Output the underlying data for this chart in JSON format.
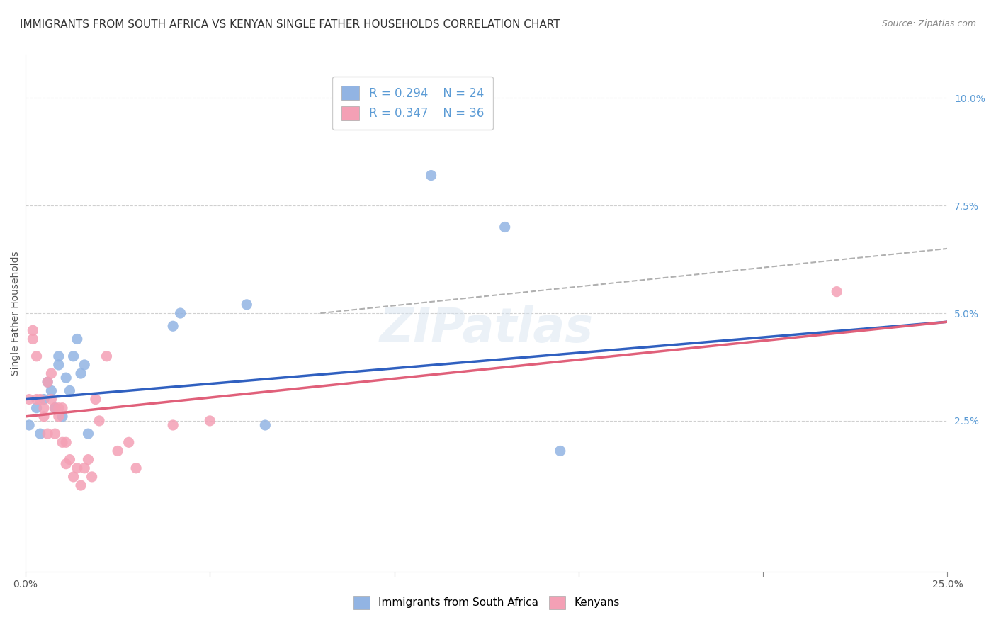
{
  "title": "IMMIGRANTS FROM SOUTH AFRICA VS KENYAN SINGLE FATHER HOUSEHOLDS CORRELATION CHART",
  "source": "Source: ZipAtlas.com",
  "xlabel_label": "",
  "ylabel_label": "Single Father Households",
  "xlim": [
    0.0,
    0.25
  ],
  "ylim": [
    -0.01,
    0.11
  ],
  "xticks": [
    0.0,
    0.05,
    0.1,
    0.15,
    0.2,
    0.25
  ],
  "xticklabels": [
    "0.0%",
    "",
    "",
    "",
    "",
    "25.0%"
  ],
  "yticks_right": [
    0.0,
    0.025,
    0.05,
    0.075,
    0.1
  ],
  "yticklabels_right": [
    "",
    "2.5%",
    "5.0%",
    "7.5%",
    "10.0%"
  ],
  "blue_R": "0.294",
  "blue_N": "24",
  "pink_R": "0.347",
  "pink_N": "36",
  "blue_color": "#92b4e3",
  "pink_color": "#f4a0b5",
  "blue_line_color": "#3060c0",
  "pink_line_color": "#e0607a",
  "dashed_line_color": "#b0b0b0",
  "watermark": "ZIPatlas",
  "blue_scatter_x": [
    0.001,
    0.003,
    0.004,
    0.005,
    0.006,
    0.007,
    0.008,
    0.009,
    0.009,
    0.01,
    0.011,
    0.012,
    0.013,
    0.014,
    0.015,
    0.016,
    0.017,
    0.04,
    0.042,
    0.06,
    0.065,
    0.11,
    0.13,
    0.145
  ],
  "blue_scatter_y": [
    0.024,
    0.028,
    0.022,
    0.03,
    0.034,
    0.032,
    0.028,
    0.04,
    0.038,
    0.026,
    0.035,
    0.032,
    0.04,
    0.044,
    0.036,
    0.038,
    0.022,
    0.047,
    0.05,
    0.052,
    0.024,
    0.082,
    0.07,
    0.018
  ],
  "pink_scatter_x": [
    0.001,
    0.002,
    0.002,
    0.003,
    0.003,
    0.004,
    0.005,
    0.005,
    0.006,
    0.006,
    0.007,
    0.007,
    0.008,
    0.008,
    0.009,
    0.009,
    0.01,
    0.01,
    0.011,
    0.011,
    0.012,
    0.013,
    0.014,
    0.015,
    0.016,
    0.017,
    0.018,
    0.019,
    0.02,
    0.022,
    0.025,
    0.028,
    0.03,
    0.04,
    0.05,
    0.22
  ],
  "pink_scatter_y": [
    0.03,
    0.046,
    0.044,
    0.04,
    0.03,
    0.03,
    0.028,
    0.026,
    0.034,
    0.022,
    0.036,
    0.03,
    0.028,
    0.022,
    0.026,
    0.028,
    0.028,
    0.02,
    0.02,
    0.015,
    0.016,
    0.012,
    0.014,
    0.01,
    0.014,
    0.016,
    0.012,
    0.03,
    0.025,
    0.04,
    0.018,
    0.02,
    0.014,
    0.024,
    0.025,
    0.055
  ],
  "blue_line_x": [
    0.0,
    0.25
  ],
  "blue_line_y_start": 0.03,
  "blue_line_y_end": 0.048,
  "pink_line_x": [
    0.0,
    0.25
  ],
  "pink_line_y_start": 0.026,
  "pink_line_y_end": 0.048,
  "dashed_line_x": [
    0.08,
    0.25
  ],
  "dashed_line_y_start": 0.05,
  "dashed_line_y_end": 0.065,
  "grid_color": "#d0d0d0",
  "background_color": "#ffffff",
  "title_fontsize": 11,
  "axis_label_fontsize": 10,
  "tick_fontsize": 10,
  "legend_fontsize": 12,
  "watermark_fontsize": 48,
  "watermark_color": "#d8e4f0",
  "watermark_alpha": 0.5
}
